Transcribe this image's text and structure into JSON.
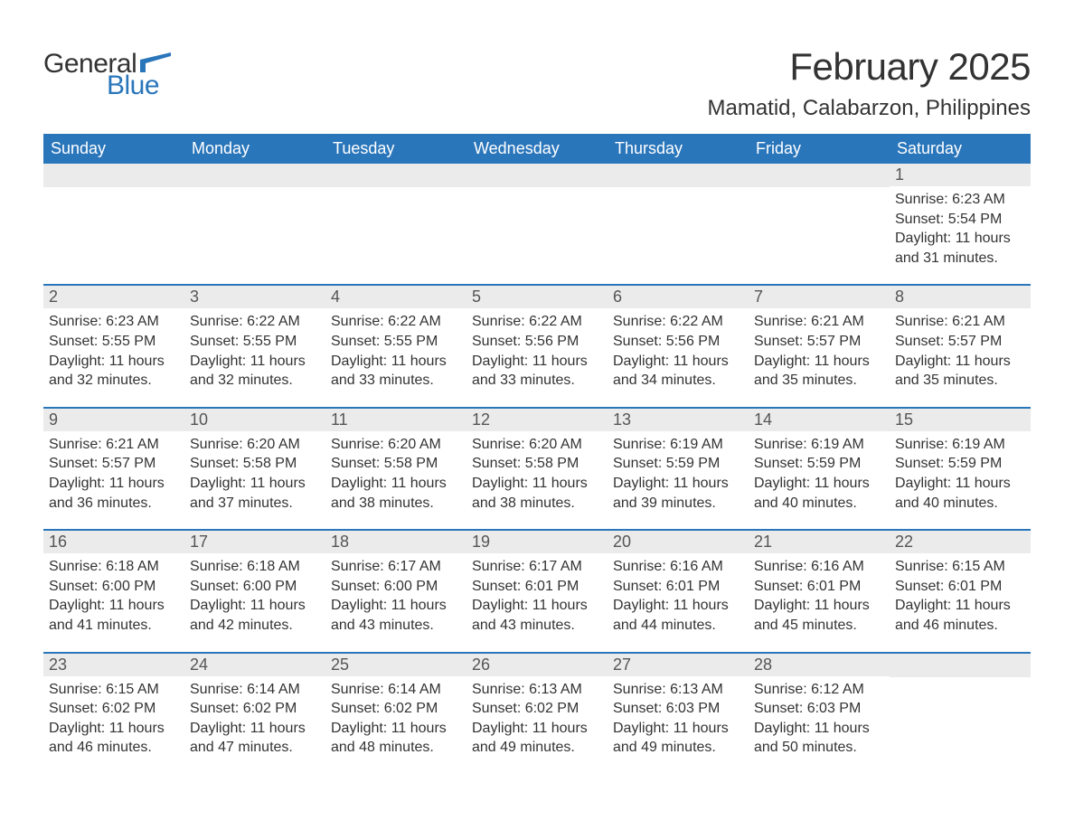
{
  "logo": {
    "general": "General",
    "blue": "Blue"
  },
  "title": "February 2025",
  "location": "Mamatid, Calabarzon, Philippines",
  "colors": {
    "header_bg": "#2a76bb",
    "header_text": "#ffffff",
    "daynum_bg": "#ebebeb",
    "week_border": "#2a76bb",
    "text": "#333333",
    "logo_blue": "#2a76bb"
  },
  "days_of_week": [
    "Sunday",
    "Monday",
    "Tuesday",
    "Wednesday",
    "Thursday",
    "Friday",
    "Saturday"
  ],
  "weeks": [
    [
      {
        "day": "",
        "sunrise": "",
        "sunset": "",
        "daylight1": "",
        "daylight2": ""
      },
      {
        "day": "",
        "sunrise": "",
        "sunset": "",
        "daylight1": "",
        "daylight2": ""
      },
      {
        "day": "",
        "sunrise": "",
        "sunset": "",
        "daylight1": "",
        "daylight2": ""
      },
      {
        "day": "",
        "sunrise": "",
        "sunset": "",
        "daylight1": "",
        "daylight2": ""
      },
      {
        "day": "",
        "sunrise": "",
        "sunset": "",
        "daylight1": "",
        "daylight2": ""
      },
      {
        "day": "",
        "sunrise": "",
        "sunset": "",
        "daylight1": "",
        "daylight2": ""
      },
      {
        "day": "1",
        "sunrise": "Sunrise: 6:23 AM",
        "sunset": "Sunset: 5:54 PM",
        "daylight1": "Daylight: 11 hours",
        "daylight2": "and 31 minutes."
      }
    ],
    [
      {
        "day": "2",
        "sunrise": "Sunrise: 6:23 AM",
        "sunset": "Sunset: 5:55 PM",
        "daylight1": "Daylight: 11 hours",
        "daylight2": "and 32 minutes."
      },
      {
        "day": "3",
        "sunrise": "Sunrise: 6:22 AM",
        "sunset": "Sunset: 5:55 PM",
        "daylight1": "Daylight: 11 hours",
        "daylight2": "and 32 minutes."
      },
      {
        "day": "4",
        "sunrise": "Sunrise: 6:22 AM",
        "sunset": "Sunset: 5:55 PM",
        "daylight1": "Daylight: 11 hours",
        "daylight2": "and 33 minutes."
      },
      {
        "day": "5",
        "sunrise": "Sunrise: 6:22 AM",
        "sunset": "Sunset: 5:56 PM",
        "daylight1": "Daylight: 11 hours",
        "daylight2": "and 33 minutes."
      },
      {
        "day": "6",
        "sunrise": "Sunrise: 6:22 AM",
        "sunset": "Sunset: 5:56 PM",
        "daylight1": "Daylight: 11 hours",
        "daylight2": "and 34 minutes."
      },
      {
        "day": "7",
        "sunrise": "Sunrise: 6:21 AM",
        "sunset": "Sunset: 5:57 PM",
        "daylight1": "Daylight: 11 hours",
        "daylight2": "and 35 minutes."
      },
      {
        "day": "8",
        "sunrise": "Sunrise: 6:21 AM",
        "sunset": "Sunset: 5:57 PM",
        "daylight1": "Daylight: 11 hours",
        "daylight2": "and 35 minutes."
      }
    ],
    [
      {
        "day": "9",
        "sunrise": "Sunrise: 6:21 AM",
        "sunset": "Sunset: 5:57 PM",
        "daylight1": "Daylight: 11 hours",
        "daylight2": "and 36 minutes."
      },
      {
        "day": "10",
        "sunrise": "Sunrise: 6:20 AM",
        "sunset": "Sunset: 5:58 PM",
        "daylight1": "Daylight: 11 hours",
        "daylight2": "and 37 minutes."
      },
      {
        "day": "11",
        "sunrise": "Sunrise: 6:20 AM",
        "sunset": "Sunset: 5:58 PM",
        "daylight1": "Daylight: 11 hours",
        "daylight2": "and 38 minutes."
      },
      {
        "day": "12",
        "sunrise": "Sunrise: 6:20 AM",
        "sunset": "Sunset: 5:58 PM",
        "daylight1": "Daylight: 11 hours",
        "daylight2": "and 38 minutes."
      },
      {
        "day": "13",
        "sunrise": "Sunrise: 6:19 AM",
        "sunset": "Sunset: 5:59 PM",
        "daylight1": "Daylight: 11 hours",
        "daylight2": "and 39 minutes."
      },
      {
        "day": "14",
        "sunrise": "Sunrise: 6:19 AM",
        "sunset": "Sunset: 5:59 PM",
        "daylight1": "Daylight: 11 hours",
        "daylight2": "and 40 minutes."
      },
      {
        "day": "15",
        "sunrise": "Sunrise: 6:19 AM",
        "sunset": "Sunset: 5:59 PM",
        "daylight1": "Daylight: 11 hours",
        "daylight2": "and 40 minutes."
      }
    ],
    [
      {
        "day": "16",
        "sunrise": "Sunrise: 6:18 AM",
        "sunset": "Sunset: 6:00 PM",
        "daylight1": "Daylight: 11 hours",
        "daylight2": "and 41 minutes."
      },
      {
        "day": "17",
        "sunrise": "Sunrise: 6:18 AM",
        "sunset": "Sunset: 6:00 PM",
        "daylight1": "Daylight: 11 hours",
        "daylight2": "and 42 minutes."
      },
      {
        "day": "18",
        "sunrise": "Sunrise: 6:17 AM",
        "sunset": "Sunset: 6:00 PM",
        "daylight1": "Daylight: 11 hours",
        "daylight2": "and 43 minutes."
      },
      {
        "day": "19",
        "sunrise": "Sunrise: 6:17 AM",
        "sunset": "Sunset: 6:01 PM",
        "daylight1": "Daylight: 11 hours",
        "daylight2": "and 43 minutes."
      },
      {
        "day": "20",
        "sunrise": "Sunrise: 6:16 AM",
        "sunset": "Sunset: 6:01 PM",
        "daylight1": "Daylight: 11 hours",
        "daylight2": "and 44 minutes."
      },
      {
        "day": "21",
        "sunrise": "Sunrise: 6:16 AM",
        "sunset": "Sunset: 6:01 PM",
        "daylight1": "Daylight: 11 hours",
        "daylight2": "and 45 minutes."
      },
      {
        "day": "22",
        "sunrise": "Sunrise: 6:15 AM",
        "sunset": "Sunset: 6:01 PM",
        "daylight1": "Daylight: 11 hours",
        "daylight2": "and 46 minutes."
      }
    ],
    [
      {
        "day": "23",
        "sunrise": "Sunrise: 6:15 AM",
        "sunset": "Sunset: 6:02 PM",
        "daylight1": "Daylight: 11 hours",
        "daylight2": "and 46 minutes."
      },
      {
        "day": "24",
        "sunrise": "Sunrise: 6:14 AM",
        "sunset": "Sunset: 6:02 PM",
        "daylight1": "Daylight: 11 hours",
        "daylight2": "and 47 minutes."
      },
      {
        "day": "25",
        "sunrise": "Sunrise: 6:14 AM",
        "sunset": "Sunset: 6:02 PM",
        "daylight1": "Daylight: 11 hours",
        "daylight2": "and 48 minutes."
      },
      {
        "day": "26",
        "sunrise": "Sunrise: 6:13 AM",
        "sunset": "Sunset: 6:02 PM",
        "daylight1": "Daylight: 11 hours",
        "daylight2": "and 49 minutes."
      },
      {
        "day": "27",
        "sunrise": "Sunrise: 6:13 AM",
        "sunset": "Sunset: 6:03 PM",
        "daylight1": "Daylight: 11 hours",
        "daylight2": "and 49 minutes."
      },
      {
        "day": "28",
        "sunrise": "Sunrise: 6:12 AM",
        "sunset": "Sunset: 6:03 PM",
        "daylight1": "Daylight: 11 hours",
        "daylight2": "and 50 minutes."
      },
      {
        "day": "",
        "sunrise": "",
        "sunset": "",
        "daylight1": "",
        "daylight2": ""
      }
    ]
  ]
}
